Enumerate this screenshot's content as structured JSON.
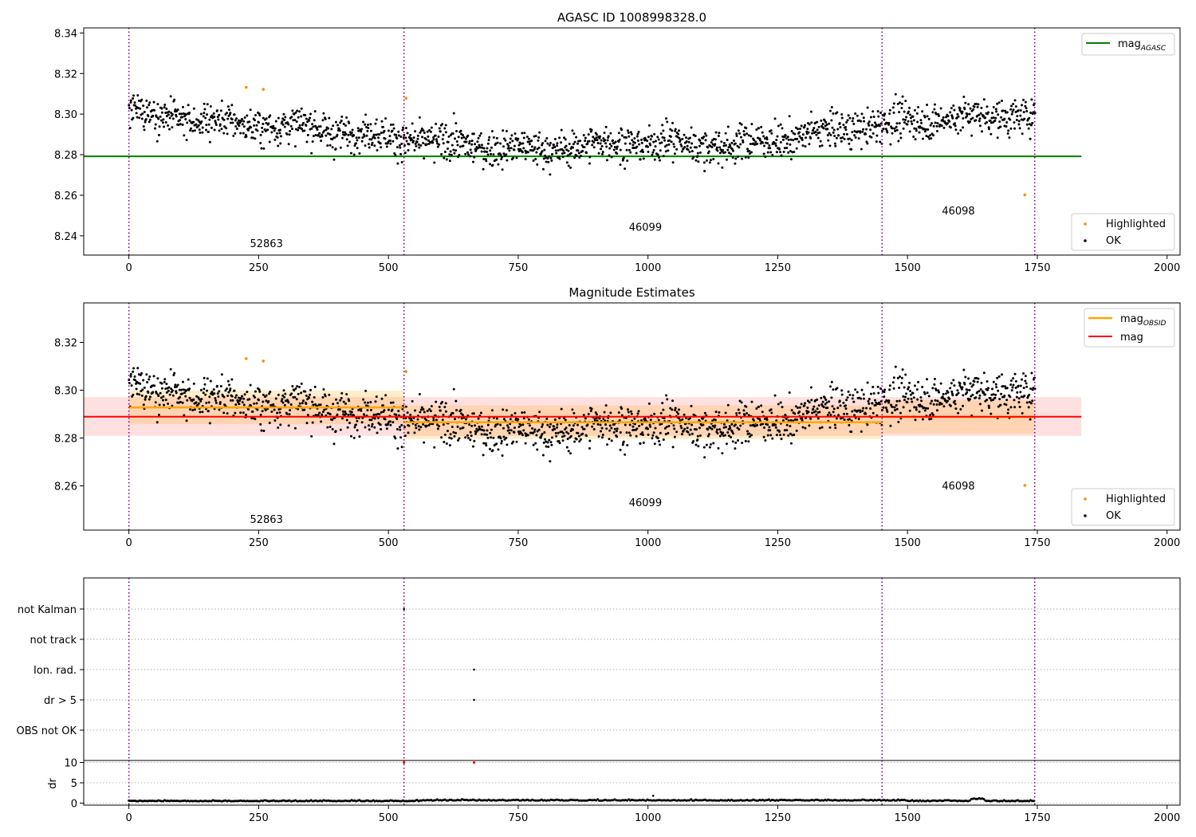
{
  "colors": {
    "ok": "#000000",
    "highlighted": "#ff8c00",
    "mag_agasc": "#008000",
    "mag_obsid": "#ffa500",
    "mag": "#ff0000",
    "obs_boundary": "#800080",
    "red_marker": "#ff0000"
  },
  "chart_data": [
    {
      "type": "scatter",
      "title": "AGASC ID 1008998328.0",
      "xlim": [
        -87,
        2025
      ],
      "ylim": [
        8.2305,
        8.3425
      ],
      "x_ticks": [
        0,
        250,
        500,
        750,
        1000,
        1250,
        1500,
        1750,
        2000
      ],
      "y_ticks": [
        8.24,
        8.26,
        8.28,
        8.3,
        8.32,
        8.34
      ],
      "obs_boundaries": [
        0,
        530,
        1451,
        1745
      ],
      "obsid_labels": [
        {
          "text": "52863",
          "x": 265,
          "y": 8.2345
        },
        {
          "text": "46099",
          "x": 995,
          "y": 8.2425
        },
        {
          "text": "46098",
          "x": 1598,
          "y": 8.2505
        }
      ],
      "series": [
        {
          "name": "OK",
          "role": "ok",
          "noise": [
            0.3006,
            0.2954,
            0.2922,
            0.2862,
            0.2822,
            0.2862,
            0.2842,
            0.2922,
            0.2978,
            0.2998
          ]
        },
        {
          "name": "Highlighted",
          "role": "highlighted",
          "points": [
            [
              226,
              8.3132
            ],
            [
              259,
              8.3122
            ],
            [
              534,
              8.3078
            ],
            [
              1726,
              8.2602
            ]
          ]
        }
      ],
      "lines": [
        {
          "name": "mag_AGASC",
          "y": 8.2792,
          "x_range": [
            -87,
            1835
          ]
        }
      ],
      "legend_lines": [
        {
          "label": "mag",
          "sub": "AGASC",
          "color_key": "mag_agasc"
        }
      ],
      "legend_points": [
        {
          "label": "Highlighted",
          "color_key": "highlighted"
        },
        {
          "label": "OK",
          "color_key": "ok"
        }
      ]
    },
    {
      "type": "scatter",
      "title": "Magnitude Estimates",
      "xlim": [
        -87,
        2025
      ],
      "ylim": [
        8.2415,
        8.3365
      ],
      "x_ticks": [
        0,
        250,
        500,
        750,
        1000,
        1250,
        1500,
        1750,
        2000
      ],
      "y_ticks": [
        8.26,
        8.28,
        8.3,
        8.32
      ],
      "obs_boundaries": [
        0,
        530,
        1451,
        1745
      ],
      "obsid_labels": [
        {
          "text": "52863",
          "x": 265,
          "y": 8.2445
        },
        {
          "text": "46099",
          "x": 995,
          "y": 8.2515
        },
        {
          "text": "46098",
          "x": 1598,
          "y": 8.2585
        }
      ],
      "series": [
        {
          "name": "OK",
          "role": "ok"
        },
        {
          "name": "Highlighted",
          "role": "highlighted",
          "points": [
            [
              226,
              8.3132
            ],
            [
              259,
              8.3122
            ],
            [
              534,
              8.3078
            ],
            [
              1726,
              8.2602
            ]
          ]
        }
      ],
      "lines": [
        {
          "name": "mag",
          "y": 8.2889,
          "band": [
            8.2809,
            8.2971
          ],
          "x_range": [
            -87,
            1835
          ]
        },
        {
          "name": "mag_OBSID",
          "segments": [
            {
              "x": [
                0,
                530
              ],
              "y": 8.2928,
              "band": [
                8.2858,
                8.2998
              ]
            },
            {
              "x": [
                530,
                1451
              ],
              "y": 8.2866,
              "band": [
                8.2796,
                8.2936
              ]
            },
            {
              "x": [
                1451,
                1745
              ],
              "y": 8.2888,
              "band": [
                8.2818,
                8.2958
              ]
            }
          ]
        }
      ],
      "legend_lines": [
        {
          "label": "mag",
          "sub": "OBSID",
          "color_key": "mag_obsid"
        },
        {
          "label": "mag",
          "sub": "",
          "color_key": "mag"
        }
      ],
      "legend_points": [
        {
          "label": "Highlighted",
          "color_key": "highlighted"
        },
        {
          "label": "OK",
          "color_key": "ok"
        }
      ]
    },
    {
      "type": "scatter",
      "title": "",
      "xlim": [
        -87,
        2025
      ],
      "categories": [
        "not Kalman",
        "not track",
        "Ion. rad.",
        "dr > 5",
        "OBS not OK"
      ],
      "obs_boundaries": [
        0,
        530,
        1451,
        1745
      ],
      "flag_points": [
        {
          "category": "not Kalman",
          "x": 530
        },
        {
          "category": "Ion. rad.",
          "x": 665
        },
        {
          "category": "dr > 5",
          "x": 665
        }
      ]
    },
    {
      "type": "scatter",
      "title": "",
      "ylabel": "dr",
      "xlim": [
        -87,
        2025
      ],
      "ylim": [
        -0.5,
        10.5
      ],
      "x_ticks": [
        0,
        250,
        500,
        750,
        1000,
        1250,
        1500,
        1750,
        2000
      ],
      "y_ticks": [
        0,
        5,
        10
      ],
      "obs_boundaries": [
        0,
        530,
        1451,
        1745
      ],
      "series": [
        {
          "name": "dr",
          "role": "ok",
          "baseline": 0.45
        },
        {
          "name": "dr > 5",
          "role": "red_marker",
          "points": [
            [
              530,
              10
            ],
            [
              665,
              10
            ]
          ]
        }
      ]
    }
  ]
}
